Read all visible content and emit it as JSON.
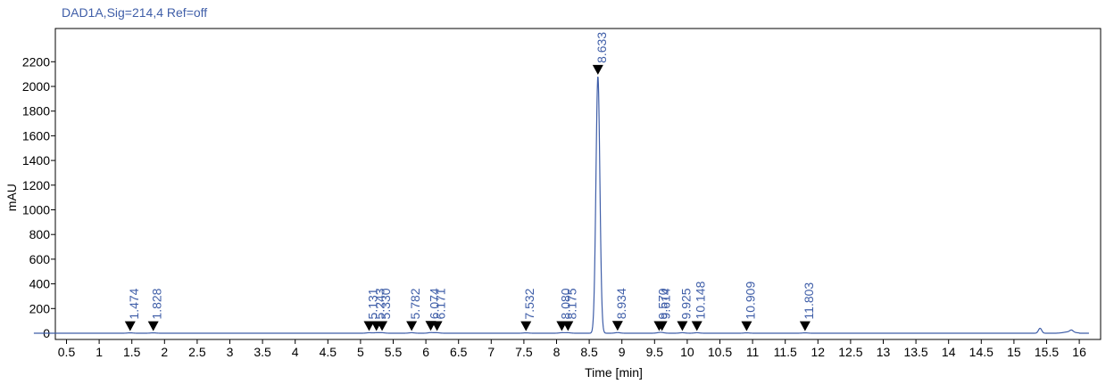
{
  "header": {
    "title": "DAD1A,Sig=214,4  Ref=off"
  },
  "chart_data": {
    "type": "line",
    "title": "DAD1A,Sig=214,4  Ref=off",
    "xlabel": "Time [min]",
    "ylabel": "mAU",
    "xlim": [
      0.0,
      16.15
    ],
    "ylim": [
      -40,
      2280
    ],
    "x_ticks": [
      "0.5",
      "1",
      "1.5",
      "2",
      "2.5",
      "3",
      "3.5",
      "4",
      "4.5",
      "5",
      "5.5",
      "6",
      "6.5",
      "7",
      "7.5",
      "8",
      "8.5",
      "9",
      "9.5",
      "10",
      "10.5",
      "11",
      "11.5",
      "12",
      "12.5",
      "13",
      "13.5",
      "14",
      "14.5",
      "15",
      "15.5",
      "16"
    ],
    "y_ticks": [
      "0",
      "200",
      "400",
      "600",
      "800",
      "1000",
      "1200",
      "1400",
      "1600",
      "1800",
      "2000",
      "2200"
    ],
    "grid": false,
    "line_color": "#3f5ea8",
    "peaks": [
      {
        "rt": 1.474,
        "label": "1.474",
        "height": 3
      },
      {
        "rt": 1.828,
        "label": "1.828",
        "height": 3
      },
      {
        "rt": 5.131,
        "label": "5.131",
        "height": 4
      },
      {
        "rt": 5.243,
        "label": "5.243",
        "height": 4
      },
      {
        "rt": 5.33,
        "label": "5.330",
        "height": 4
      },
      {
        "rt": 5.782,
        "label": "5.782",
        "height": 4
      },
      {
        "rt": 6.074,
        "label": "6.074",
        "height": 5
      },
      {
        "rt": 6.171,
        "label": "6.171",
        "height": 4
      },
      {
        "rt": 7.532,
        "label": "7.532",
        "height": 3
      },
      {
        "rt": 8.08,
        "label": "8.080",
        "height": 4
      },
      {
        "rt": 8.175,
        "label": "8.175",
        "height": 4
      },
      {
        "rt": 8.633,
        "label": "8.633",
        "height": 2080
      },
      {
        "rt": 8.934,
        "label": "8.934",
        "height": 5
      },
      {
        "rt": 9.57,
        "label": "9.570",
        "height": 4
      },
      {
        "rt": 9.614,
        "label": "9.614",
        "height": 4
      },
      {
        "rt": 9.925,
        "label": "9.925",
        "height": 4
      },
      {
        "rt": 10.148,
        "label": "10.148",
        "height": 4
      },
      {
        "rt": 10.909,
        "label": "10.909",
        "height": 3
      },
      {
        "rt": 11.803,
        "label": "11.803",
        "height": 3
      }
    ],
    "baseline_events": [
      {
        "rt": 15.4,
        "height": 40
      },
      {
        "rt": 15.88,
        "height": 15
      }
    ]
  }
}
